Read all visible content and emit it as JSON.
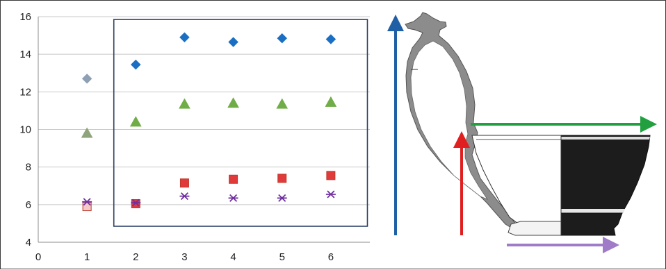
{
  "chart_data": {
    "type": "scatter",
    "title": "",
    "xlabel": "",
    "ylabel": "",
    "xlim": [
      0,
      6.8
    ],
    "ylim": [
      4,
      16
    ],
    "x_ticks": [
      "0",
      "1",
      "2",
      "3",
      "4",
      "5",
      "6"
    ],
    "y_ticks": [
      "4",
      "6",
      "8",
      "10",
      "12",
      "14",
      "16"
    ],
    "grid": "horizontal",
    "legend": "none",
    "highlight_box": {
      "x": [
        1.55,
        6.75
      ],
      "y": [
        4.85,
        15.85
      ]
    },
    "series": [
      {
        "marker": "diamond",
        "color": "#1a6fc4",
        "points": [
          {
            "x": 1,
            "y": 12.7,
            "color": "#8fa0b4"
          },
          {
            "x": 2,
            "y": 13.45
          },
          {
            "x": 3,
            "y": 14.9
          },
          {
            "x": 4,
            "y": 14.65
          },
          {
            "x": 5,
            "y": 14.85
          },
          {
            "x": 6,
            "y": 14.8
          }
        ]
      },
      {
        "marker": "triangle",
        "color": "#70ad47",
        "points": [
          {
            "x": 1,
            "y": 9.8,
            "color": "#8fa47a"
          },
          {
            "x": 2,
            "y": 10.4
          },
          {
            "x": 3,
            "y": 11.35
          },
          {
            "x": 4,
            "y": 11.4
          },
          {
            "x": 5,
            "y": 11.35
          },
          {
            "x": 6,
            "y": 11.45
          }
        ]
      },
      {
        "marker": "square",
        "color": "#e03a3a",
        "points": [
          {
            "x": 1,
            "y": 5.9,
            "color": "#f5c9c9"
          },
          {
            "x": 2,
            "y": 6.05
          },
          {
            "x": 3,
            "y": 7.15
          },
          {
            "x": 4,
            "y": 7.35
          },
          {
            "x": 5,
            "y": 7.4
          },
          {
            "x": 6,
            "y": 7.55
          }
        ]
      },
      {
        "marker": "asterisk",
        "color": "#7030a0",
        "points": [
          {
            "x": 1,
            "y": 6.15
          },
          {
            "x": 2,
            "y": 6.1
          },
          {
            "x": 3,
            "y": 6.45
          },
          {
            "x": 4,
            "y": 6.35
          },
          {
            "x": 5,
            "y": 6.35
          },
          {
            "x": 6,
            "y": 6.55
          }
        ]
      }
    ]
  },
  "illustration": {
    "subject": "cup-profile-drawing",
    "arrows": [
      {
        "name": "height-arrow",
        "color": "#1f5fa6",
        "direction": "up"
      },
      {
        "name": "handle-height-arrow",
        "color": "#e02020",
        "direction": "up"
      },
      {
        "name": "rim-width-arrow",
        "color": "#22a040",
        "direction": "right"
      },
      {
        "name": "base-width-arrow",
        "color": "#a07cc8",
        "direction": "right"
      }
    ]
  }
}
